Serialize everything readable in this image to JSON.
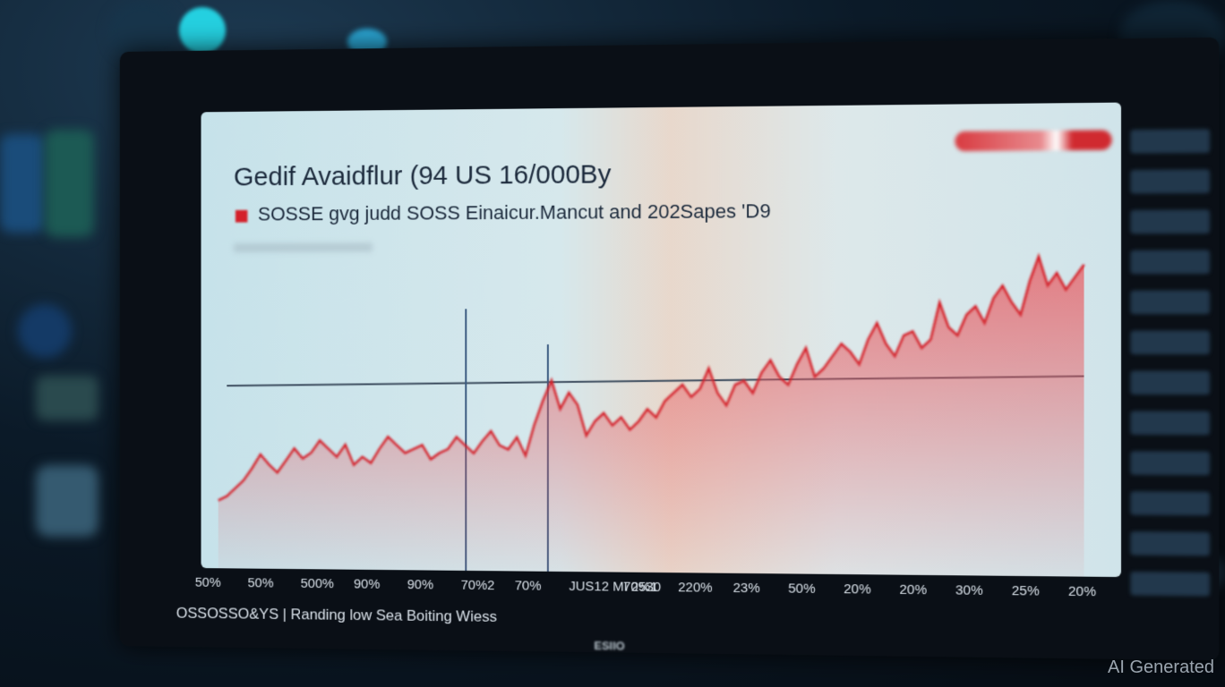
{
  "watermark": "AI Generated",
  "monitor": {
    "brand": "",
    "brand_sub": "",
    "stand_logo": "ESIIO"
  },
  "chart": {
    "title": "Gedif Avaidflur (94 US 16/000By",
    "subtitle": "SOSSE gvg judd SOSS Einaicur.Mancut and 202Sapes 'D9",
    "x_ticks": [
      "50%",
      "50%",
      "500%",
      "90%",
      "90%",
      "70%2",
      "70%",
      "JUS12 MI 2530",
      "70%1",
      "220%",
      "23%",
      "50%",
      "20%",
      "20%",
      "30%",
      "25%",
      "20%"
    ],
    "ticker": "OSSOSSO&YS | Randing low Sea Boiting Wiess",
    "colors": {
      "series": "#d4202a",
      "fill": "#e85a60",
      "screen": "#d2e6ec"
    }
  },
  "chart_data": {
    "type": "area",
    "title": "Gedif Avaidflur (94 US 16/000By",
    "series": [
      {
        "values": [
          12,
          14,
          18,
          22,
          28,
          35,
          30,
          26,
          32,
          38,
          33,
          36,
          42,
          38,
          34,
          40,
          30,
          34,
          31,
          38,
          44,
          40,
          36,
          38,
          40,
          33,
          36,
          38,
          44,
          40,
          36,
          42,
          47,
          40,
          38,
          44,
          35,
          50,
          62,
          72,
          58,
          66,
          60,
          45,
          52,
          56,
          50,
          54,
          48,
          52,
          58,
          54,
          62,
          66,
          70,
          64,
          68,
          78,
          66,
          60,
          70,
          72,
          66,
          76,
          82,
          74,
          70,
          80,
          88,
          74,
          78,
          84,
          90,
          86,
          80,
          92,
          100,
          90,
          84,
          94,
          96,
          88,
          92,
          110,
          98,
          94,
          104,
          108,
          100,
          112,
          118,
          110,
          104,
          120,
          132,
          118,
          124,
          116,
          122,
          128
        ]
      }
    ],
    "ylim": [
      0,
      140
    ],
    "grid": false
  }
}
